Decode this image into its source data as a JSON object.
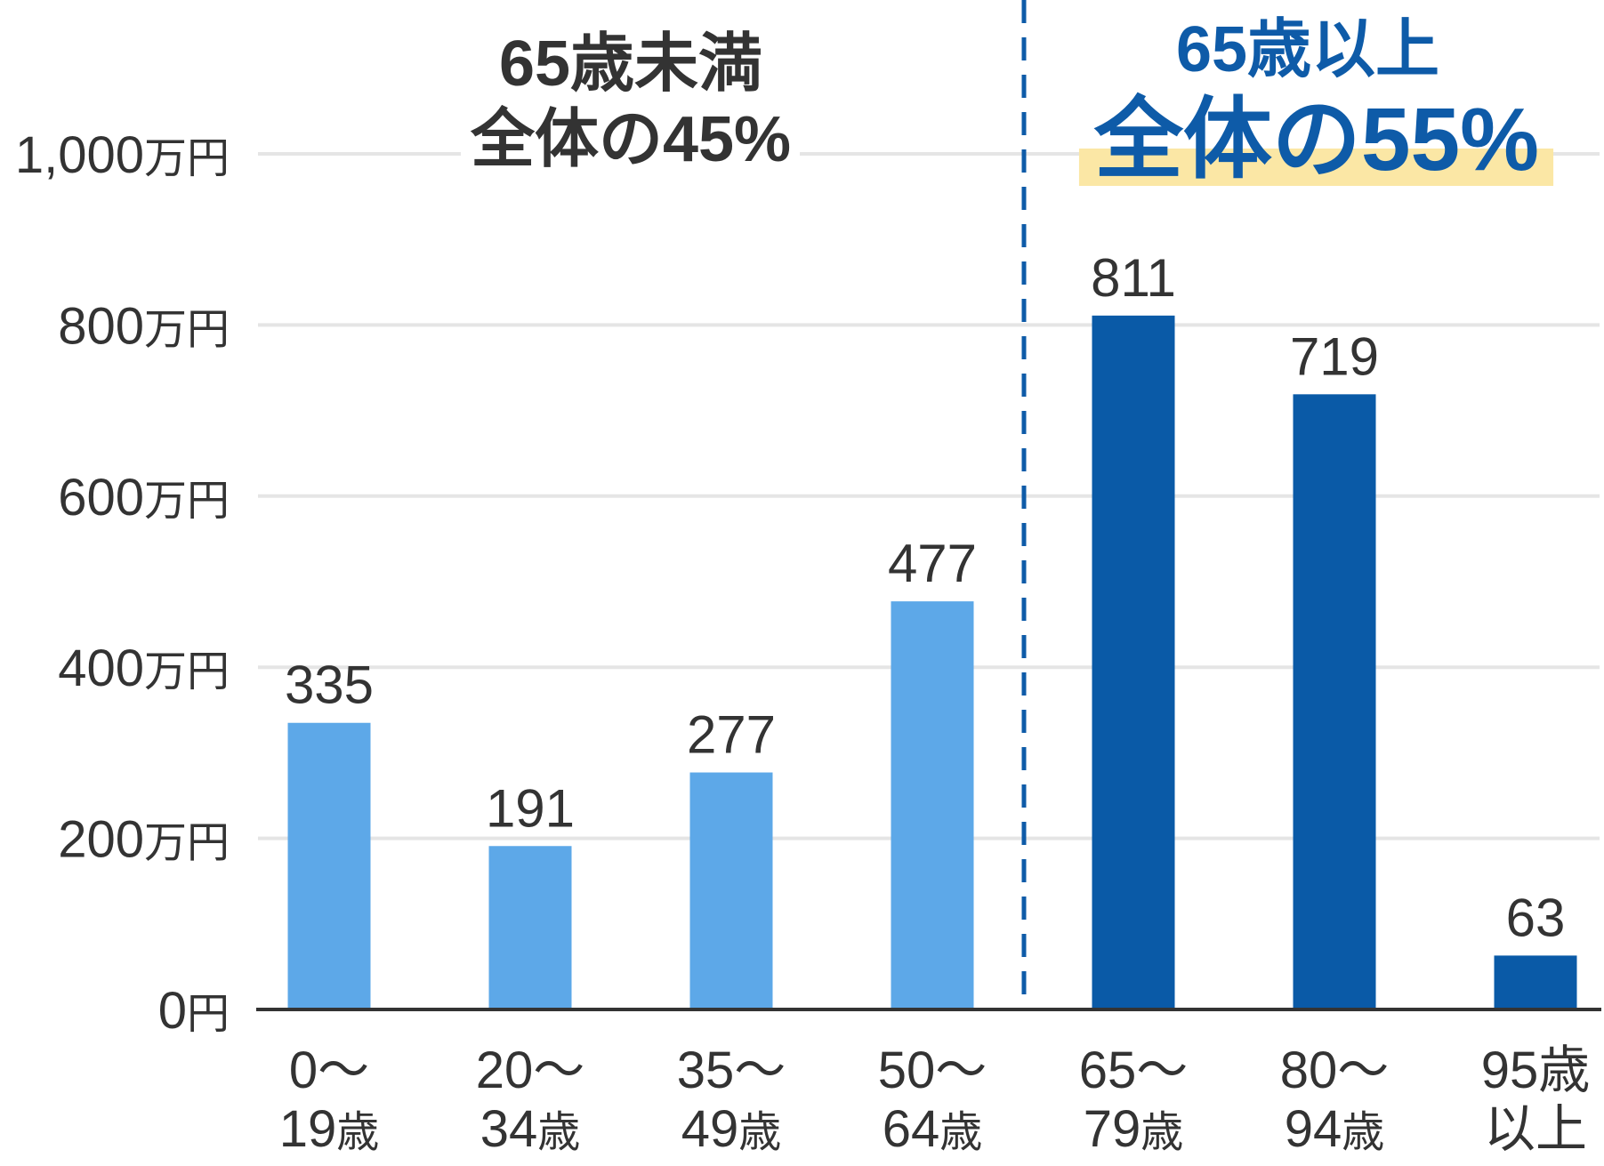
{
  "chart_data": {
    "type": "bar",
    "categories": [
      [
        "0〜",
        "19歳"
      ],
      [
        "20〜",
        "34歳"
      ],
      [
        "35〜",
        "49歳"
      ],
      [
        "50〜",
        "64歳"
      ],
      [
        "65〜",
        "79歳"
      ],
      [
        "80〜",
        "94歳"
      ],
      [
        "95歳",
        "以上"
      ]
    ],
    "values": [
      335,
      191,
      277,
      477,
      811,
      719,
      63
    ],
    "value_labels_shown": true,
    "ylim": [
      0,
      1000
    ],
    "yticks": [
      0,
      200,
      400,
      600,
      800,
      1000
    ],
    "ytick_labels": [
      "0円",
      "200万円",
      "400万円",
      "600万円",
      "800万円",
      "1,000万円"
    ],
    "grid": true,
    "groups": [
      {
        "category_indices": [
          0,
          1,
          2,
          3
        ],
        "bar_color": "#5DA8E8",
        "heading": "65歳未満",
        "share": "全体の45%",
        "text_color": "#333333"
      },
      {
        "category_indices": [
          4,
          5,
          6
        ],
        "bar_color": "#0A5AA7",
        "heading": "65歳以上",
        "share": "全体の55%",
        "text_color": "#0E5BA8",
        "share_highlight_color": "#FBE7A5"
      }
    ],
    "group_divider": {
      "style": "dashed",
      "color": "#0E5BA8"
    },
    "colors": {
      "text": "#333333",
      "grid": "#E5E5E5",
      "axis": "#333333",
      "background": "#FFFFFF"
    }
  }
}
